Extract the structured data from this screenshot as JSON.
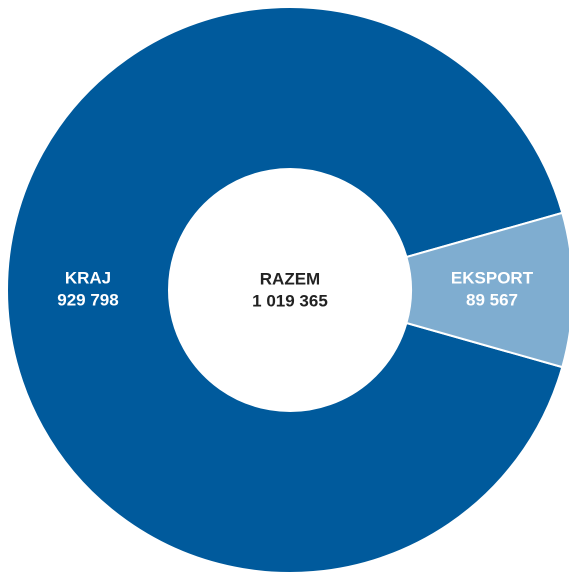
{
  "chart_data": {
    "type": "donut",
    "categories": [
      "KRAJ",
      "EKSPORT"
    ],
    "values": [
      929798,
      89567
    ],
    "value_labels": [
      "929 798",
      "89 567"
    ],
    "colors": [
      "#005a9c",
      "#7fadd0"
    ],
    "center_title": "RAZEM",
    "total": {
      "value": 1019365,
      "label": "1 019 365"
    }
  }
}
